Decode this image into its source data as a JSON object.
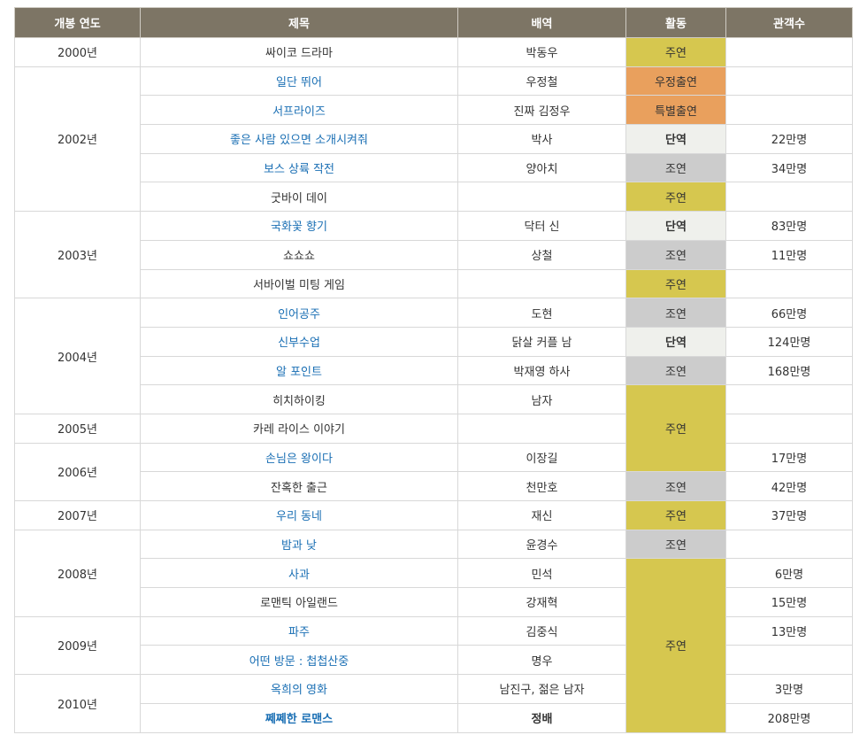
{
  "headers": [
    "개봉 연도",
    "제목",
    "배역",
    "활동",
    "관객수"
  ],
  "colors": {
    "header_bg": "#7d7565",
    "link": "#1a6fb4",
    "role_lead": "#d6c74f",
    "role_special": "#e9a05d",
    "role_cameo": "#eff0ec",
    "role_support": "#cccccc"
  },
  "rows": [
    {
      "year": "2000년",
      "year_span": 1,
      "title": "싸이코 드라마",
      "link": false,
      "role": "박동우",
      "activity": "주연",
      "activity_type": "lead",
      "act_span": 1,
      "audience": ""
    },
    {
      "year": "2002년",
      "year_span": 5,
      "title": "일단 뛰어",
      "link": true,
      "role": "우정철",
      "activity": "우정출연",
      "activity_type": "special",
      "act_span": 1,
      "audience": ""
    },
    {
      "title": "서프라이즈",
      "link": true,
      "role": "진짜 김정우",
      "activity": "특별출연",
      "activity_type": "special",
      "act_span": 1,
      "audience": ""
    },
    {
      "title": "좋은 사람 있으면 소개시켜줘",
      "link": true,
      "role": "박사",
      "activity": "단역",
      "activity_type": "cameo",
      "act_span": 1,
      "audience": "22만명"
    },
    {
      "title": "보스 상륙 작전",
      "link": true,
      "role": "양아치",
      "activity": "조연",
      "activity_type": "support",
      "act_span": 1,
      "audience": "34만명"
    },
    {
      "title": "굿바이 데이",
      "link": false,
      "role": "",
      "activity": "주연",
      "activity_type": "lead",
      "act_span": 1,
      "audience": ""
    },
    {
      "year": "2003년",
      "year_span": 3,
      "title": "국화꽃 향기",
      "link": true,
      "role": "닥터 신",
      "activity": "단역",
      "activity_type": "cameo",
      "act_span": 1,
      "audience": "83만명"
    },
    {
      "title": "쇼쇼쇼",
      "link": false,
      "role": "상철",
      "activity": "조연",
      "activity_type": "support",
      "act_span": 1,
      "audience": "11만명"
    },
    {
      "title": "서바이벌 미팅 게임",
      "link": false,
      "role": "",
      "activity": "주연",
      "activity_type": "lead",
      "act_span": 1,
      "audience": ""
    },
    {
      "year": "2004년",
      "year_span": 4,
      "title": "인어공주",
      "link": true,
      "role": "도현",
      "activity": "조연",
      "activity_type": "support",
      "act_span": 1,
      "audience": "66만명"
    },
    {
      "title": "신부수업",
      "link": true,
      "role": "닭살 커플 남",
      "activity": "단역",
      "activity_type": "cameo",
      "act_span": 1,
      "audience": "124만명"
    },
    {
      "title": "알 포인트",
      "link": true,
      "role": "박재영 하사",
      "activity": "조연",
      "activity_type": "support",
      "act_span": 1,
      "audience": "168만명"
    },
    {
      "title": "히치하이킹",
      "link": false,
      "role": "남자",
      "activity": "주연",
      "activity_type": "lead",
      "act_span": 3,
      "audience": ""
    },
    {
      "year": "2005년",
      "year_span": 1,
      "title": "카레 라이스 이야기",
      "link": false,
      "role": "",
      "audience": ""
    },
    {
      "year": "2006년",
      "year_span": 2,
      "title": "손님은 왕이다",
      "link": true,
      "role": "이장길",
      "audience": "17만명"
    },
    {
      "title": "잔혹한 출근",
      "link": false,
      "role": "천만호",
      "activity": "조연",
      "activity_type": "support",
      "act_span": 1,
      "audience": "42만명"
    },
    {
      "year": "2007년",
      "year_span": 1,
      "title": "우리 동네",
      "link": true,
      "role": "재신",
      "activity": "주연",
      "activity_type": "lead",
      "act_span": 1,
      "audience": "37만명"
    },
    {
      "year": "2008년",
      "year_span": 3,
      "title": "밤과 낮",
      "link": true,
      "role": "윤경수",
      "activity": "조연",
      "activity_type": "support",
      "act_span": 1,
      "audience": ""
    },
    {
      "title": "사과",
      "link": true,
      "role": "민석",
      "activity": "주연",
      "activity_type": "lead",
      "act_span": 6,
      "audience": "6만명"
    },
    {
      "title": "로맨틱 아일랜드",
      "link": false,
      "role": "강재혁",
      "audience": "15만명"
    },
    {
      "year": "2009년",
      "year_span": 2,
      "title": "파주",
      "link": true,
      "role": "김중식",
      "audience": "13만명"
    },
    {
      "title": "어떤 방문 : 첩첩산중",
      "link": true,
      "role": "명우",
      "audience": ""
    },
    {
      "year": "2010년",
      "year_span": 2,
      "title": "옥희의 영화",
      "link": true,
      "role": "남진구, 젊은 남자",
      "audience": "3만명"
    },
    {
      "title": "쩨쩨한 로맨스",
      "link": true,
      "strong": true,
      "role": "정배",
      "audience": "208만명"
    }
  ]
}
